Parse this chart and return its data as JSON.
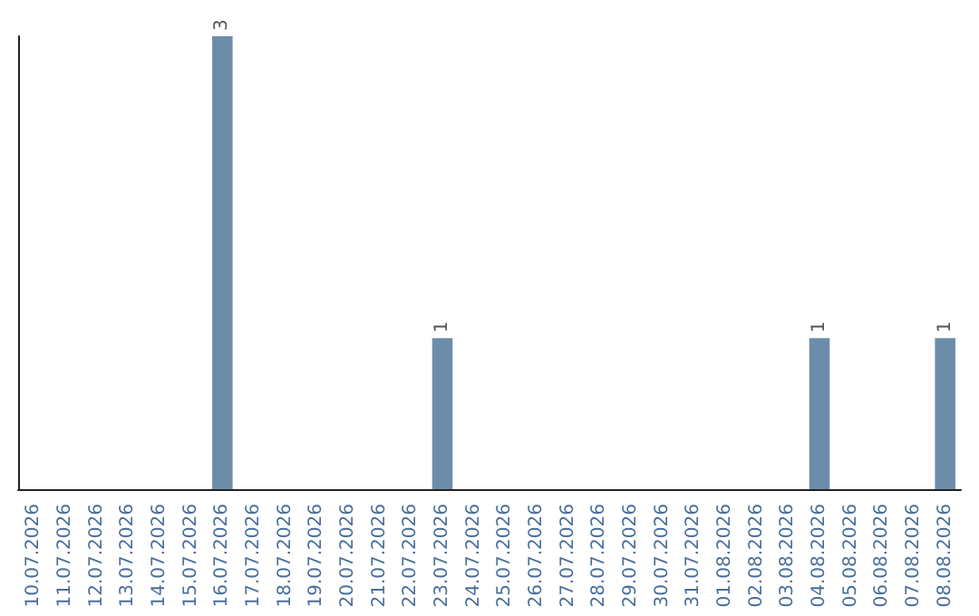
{
  "chart_data": {
    "type": "bar",
    "categories": [
      "10.07.2026",
      "11.07.2026",
      "12.07.2026",
      "13.07.2026",
      "14.07.2026",
      "15.07.2026",
      "16.07.2026",
      "17.07.2026",
      "18.07.2026",
      "19.07.2026",
      "20.07.2026",
      "21.07.2026",
      "22.07.2026",
      "23.07.2026",
      "24.07.2026",
      "25.07.2026",
      "26.07.2026",
      "27.07.2026",
      "28.07.2026",
      "29.07.2026",
      "30.07.2026",
      "31.07.2026",
      "01.08.2026",
      "02.08.2026",
      "03.08.2026",
      "04.08.2026",
      "05.08.2026",
      "06.08.2026",
      "07.08.2026",
      "08.08.2026"
    ],
    "values": [
      0,
      0,
      0,
      0,
      0,
      0,
      3,
      0,
      0,
      0,
      0,
      0,
      0,
      1,
      0,
      0,
      0,
      0,
      0,
      0,
      0,
      0,
      0,
      0,
      0,
      1,
      0,
      0,
      0,
      1
    ],
    "value_labels": [
      null,
      null,
      null,
      null,
      null,
      null,
      "3",
      null,
      null,
      null,
      null,
      null,
      null,
      "1",
      null,
      null,
      null,
      null,
      null,
      null,
      null,
      null,
      null,
      null,
      null,
      "1",
      null,
      null,
      null,
      "1"
    ],
    "color": "#6d8caa",
    "grid": false,
    "tick_labels": "x"
  }
}
